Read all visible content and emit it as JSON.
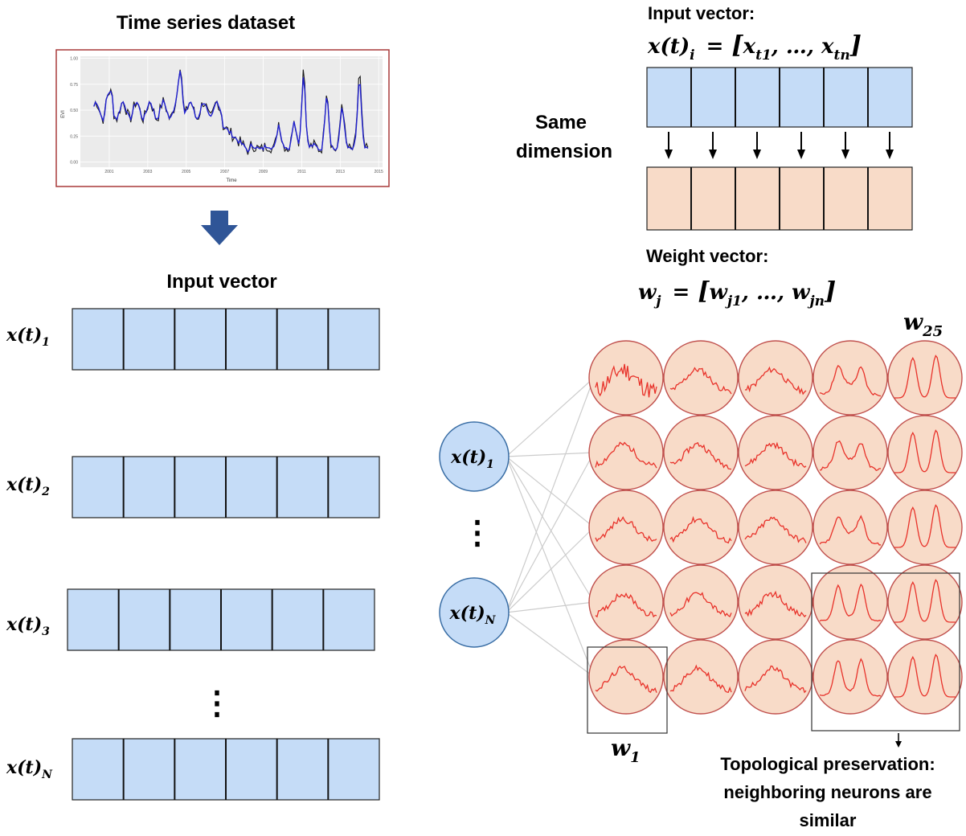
{
  "title": "Time series dataset",
  "inset_chart": {
    "y_axis_label": "EVI",
    "x_axis_label": "Time",
    "y_ticks": [
      "0.00",
      "0.25",
      "0.50",
      "0.75",
      "1.00"
    ],
    "x_ticks": [
      "2001",
      "2003",
      "2005",
      "2007",
      "2009",
      "2011",
      "2013",
      "2015"
    ],
    "colors": {
      "raw": "#1a1a1a",
      "smoothed": "#1f1fcf",
      "panel": "#ebebeb",
      "frame": "#a83a3a"
    }
  },
  "left_panel": {
    "heading": "Input vector",
    "row_labels": [
      {
        "base": "x",
        "paren": "(t)",
        "sub": "1"
      },
      {
        "base": "x",
        "paren": "(t)",
        "sub": "2"
      },
      {
        "base": "x",
        "paren": "(t)",
        "sub": "3"
      },
      {
        "base": "x",
        "paren": "(t)",
        "sub": "N"
      }
    ],
    "vertical_ellipsis": "⋮"
  },
  "top_right": {
    "input_heading": "Input vector:",
    "input_formula": {
      "lhs": "x(t)",
      "lhs_sub": "i",
      "eq": "=",
      "open": "[",
      "a": "x",
      "a_sub": "t1",
      "mid": ", …, ",
      "b": "x",
      "b_sub": "tn",
      "close": "]"
    },
    "same_dimension_line1": "Same",
    "same_dimension_line2": "dimension",
    "weight_heading": "Weight vector:",
    "weight_formula": {
      "lhs": "w",
      "lhs_sub": "j",
      "eq": "=",
      "open": "[",
      "a": "w",
      "a_sub": "j1",
      "mid": ", …, ",
      "b": "w",
      "b_sub": "jn",
      "close": "]"
    }
  },
  "som": {
    "grid_rows": 5,
    "grid_cols": 5,
    "input_nodes": [
      {
        "base": "x",
        "paren": "(t)",
        "sub": "1"
      },
      {
        "base": "x",
        "paren": "(t)",
        "sub": "N"
      }
    ],
    "node_ellipsis": "⋮",
    "w25_label": {
      "base": "w",
      "sub": "25"
    },
    "w1_label": {
      "base": "w",
      "sub": "1"
    },
    "caption_line1": "Topological preservation:",
    "caption_line2": "neighboring neurons are",
    "caption_line3": "similar",
    "colors": {
      "neuron_fill": "#f8dbc8",
      "neuron_stroke": "#c0504d",
      "curve": "#e8322a",
      "node_fill": "#c5dcf7",
      "node_stroke": "#3a6ea5"
    }
  },
  "colors": {
    "input_cell": "#c5dcf7",
    "weight_cell": "#f8dbc8",
    "down_arrow": "#2f5597"
  }
}
